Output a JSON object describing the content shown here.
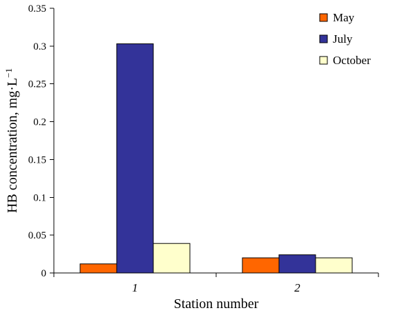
{
  "chart_data": {
    "type": "bar",
    "categories": [
      "1",
      "2"
    ],
    "series": [
      {
        "name": "May",
        "values": [
          0.012,
          0.02
        ],
        "color": "#ff6600"
      },
      {
        "name": "July",
        "values": [
          0.303,
          0.024
        ],
        "color": "#333399"
      },
      {
        "name": "October",
        "values": [
          0.039,
          0.02
        ],
        "color": "#ffffcc"
      }
    ],
    "y_ticks": [
      "0",
      "0.05",
      "0.1",
      "0.15",
      "0.2",
      "0.25",
      "0.3",
      "0.35"
    ],
    "ylim": [
      0,
      0.35
    ],
    "xlabel": "Station number",
    "ylabel_main": "HB concentration, mg·L",
    "ylabel_sup": "−1",
    "grid": false,
    "legend_position": "top-right"
  }
}
